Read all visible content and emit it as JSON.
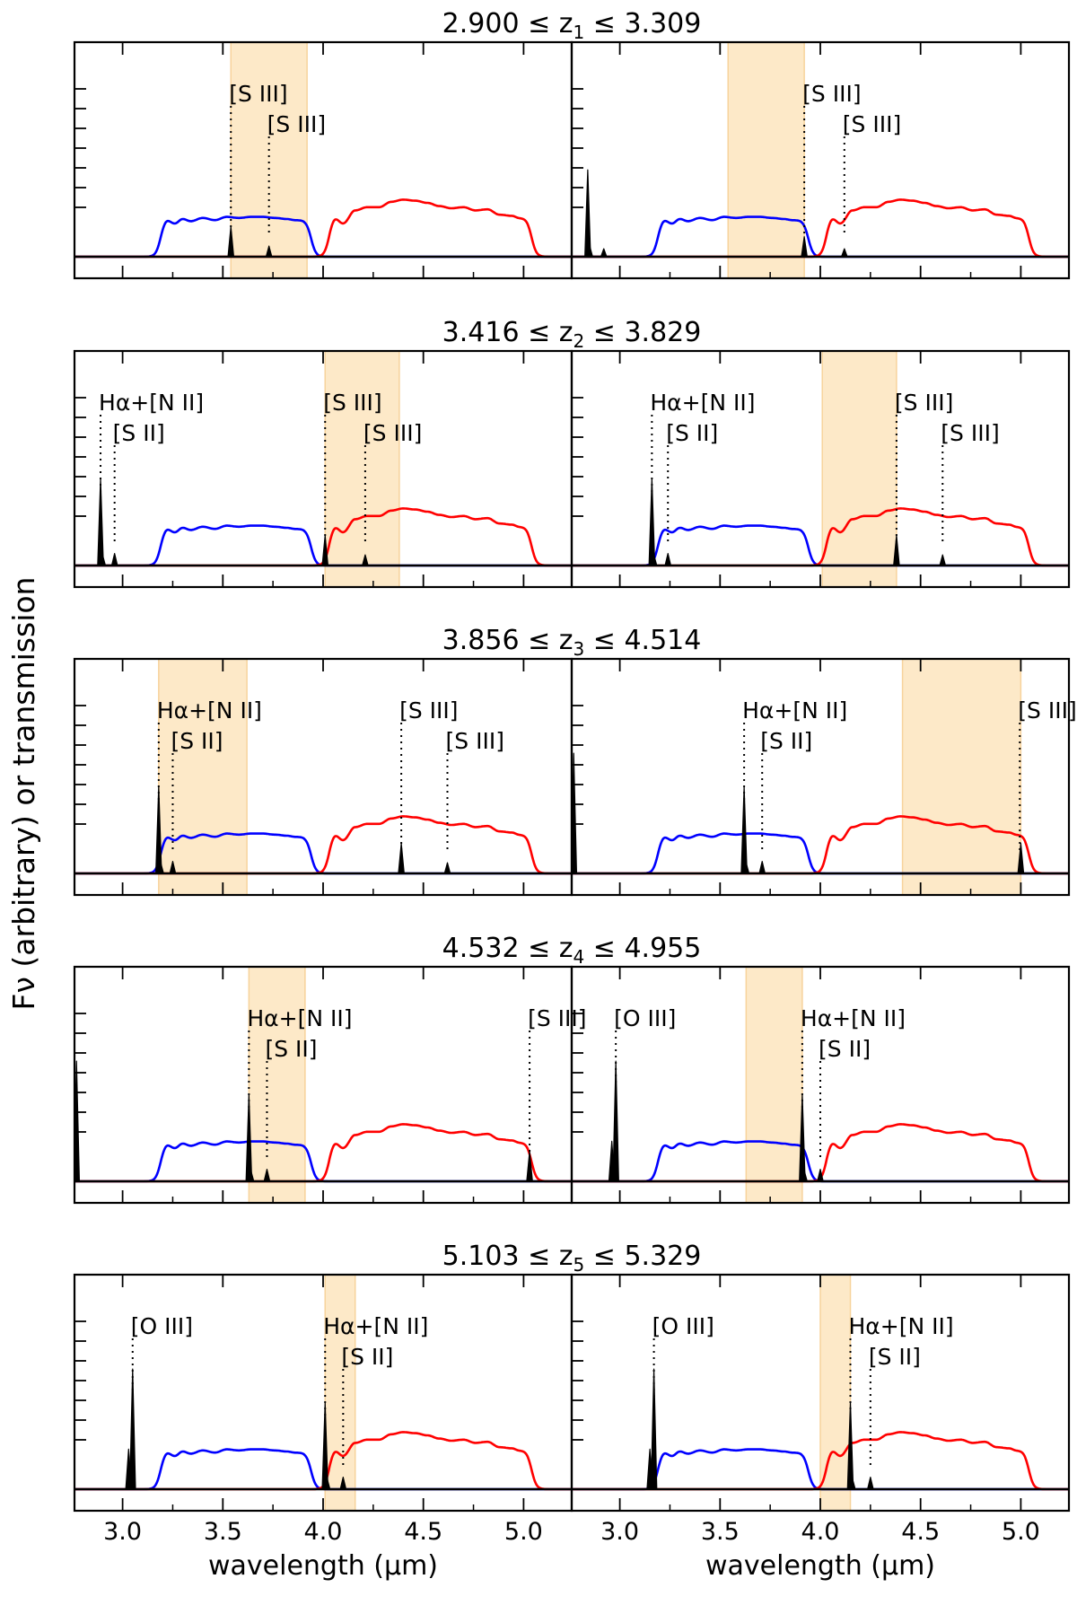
{
  "chart_data": {
    "type": "line",
    "ylabel": "Fν (arbitrary) or transmission",
    "xlabel": "wavelength (μm)",
    "xlim": [
      2.76,
      5.24
    ],
    "xticks": [
      "3.0",
      "3.5",
      "4.0",
      "4.5",
      "5.0"
    ],
    "series_legend": [
      {
        "name": "blue filter transmission",
        "color": "#0000ff"
      },
      {
        "name": "red filter transmission",
        "color": "#ff0000"
      },
      {
        "name": "emission-line spectrum",
        "color": "#000000"
      },
      {
        "name": "observed wavelength window",
        "color": "#fde9c8"
      }
    ],
    "rows": [
      {
        "title_lo": "2.900",
        "title_sym": "z",
        "title_sub": "1",
        "title_hi": "3.309",
        "panels": [
          {
            "band": [
              3.54,
              3.92
            ],
            "lines": [
              {
                "x": 3.54,
                "h": 0.45
              },
              {
                "x": 3.73,
                "h": 0.16
              }
            ],
            "labels": [
              {
                "text": "[S III]",
                "x": 3.54,
                "row": 1
              },
              {
                "text": "[S III]",
                "x": 3.73,
                "row": 2
              }
            ]
          },
          {
            "band": [
              3.54,
              3.92
            ],
            "lines": [
              {
                "x": 3.92,
                "h": 0.3
              },
              {
                "x": 4.12,
                "h": 0.12
              },
              {
                "x": 2.84,
                "h": 1.3
              },
              {
                "x": 2.92,
                "h": 0.12
              },
              {
                "x": 2.85,
                "h": 0.16
              }
            ],
            "labels": [
              {
                "text": "[S III]",
                "x": 3.92,
                "row": 1
              },
              {
                "text": "[S III]",
                "x": 4.12,
                "row": 2
              }
            ]
          }
        ]
      },
      {
        "title_lo": "3.416",
        "title_sym": "z",
        "title_sub": "2",
        "title_hi": "3.829",
        "panels": [
          {
            "band": [
              4.01,
              4.38
            ],
            "lines": [
              {
                "x": 2.89,
                "h": 1.3
              },
              {
                "x": 2.96,
                "h": 0.18
              },
              {
                "x": 4.01,
                "h": 0.45
              },
              {
                "x": 4.21,
                "h": 0.16
              },
              {
                "x": 2.9,
                "h": 0.16
              }
            ],
            "labels": [
              {
                "text": "Hα+[N II]",
                "x": 2.89,
                "row": 1
              },
              {
                "text": "[S II]",
                "x": 2.96,
                "row": 2
              },
              {
                "text": "[S III]",
                "x": 4.01,
                "row": 1
              },
              {
                "text": "[S III]",
                "x": 4.21,
                "row": 2
              }
            ]
          },
          {
            "band": [
              4.01,
              4.38
            ],
            "lines": [
              {
                "x": 3.16,
                "h": 1.3
              },
              {
                "x": 3.24,
                "h": 0.18
              },
              {
                "x": 4.38,
                "h": 0.45
              },
              {
                "x": 4.61,
                "h": 0.16
              },
              {
                "x": 3.17,
                "h": 0.16
              }
            ],
            "labels": [
              {
                "text": "Hα+[N II]",
                "x": 3.16,
                "row": 1
              },
              {
                "text": "[S II]",
                "x": 3.24,
                "row": 2
              },
              {
                "text": "[S III]",
                "x": 4.38,
                "row": 1
              },
              {
                "text": "[S III]",
                "x": 4.61,
                "row": 2
              }
            ]
          }
        ]
      },
      {
        "title_lo": "3.856",
        "title_sym": "z",
        "title_sub": "3",
        "title_hi": "4.514",
        "panels": [
          {
            "band": [
              3.18,
              3.62
            ],
            "lines": [
              {
                "x": 3.18,
                "h": 1.3
              },
              {
                "x": 3.25,
                "h": 0.18
              },
              {
                "x": 4.39,
                "h": 0.45
              },
              {
                "x": 4.62,
                "h": 0.16
              },
              {
                "x": 3.19,
                "h": 0.16
              }
            ],
            "labels": [
              {
                "text": "Hα+[N II]",
                "x": 3.18,
                "row": 1
              },
              {
                "text": "[S II]",
                "x": 3.25,
                "row": 2
              },
              {
                "text": "[S III]",
                "x": 4.39,
                "row": 1
              },
              {
                "text": "[S III]",
                "x": 4.62,
                "row": 2
              }
            ]
          },
          {
            "band": [
              4.41,
              5.0
            ],
            "lines": [
              {
                "x": 3.62,
                "h": 1.3
              },
              {
                "x": 3.71,
                "h": 0.18
              },
              {
                "x": 5.0,
                "h": 0.45
              },
              {
                "x": 2.77,
                "h": 1.8
              },
              {
                "x": 3.63,
                "h": 0.16
              }
            ],
            "labels": [
              {
                "text": "Hα+[N II]",
                "x": 3.62,
                "row": 1
              },
              {
                "text": "[S II]",
                "x": 3.71,
                "row": 2
              },
              {
                "text": "[S III]",
                "x": 4.995,
                "row": 1
              }
            ]
          }
        ]
      },
      {
        "title_lo": "4.532",
        "title_sym": "z",
        "title_sub": "4",
        "title_hi": "4.955",
        "panels": [
          {
            "band": [
              3.63,
              3.91
            ],
            "lines": [
              {
                "x": 3.63,
                "h": 1.3
              },
              {
                "x": 3.72,
                "h": 0.18
              },
              {
                "x": 5.03,
                "h": 0.45
              },
              {
                "x": 2.77,
                "h": 1.8
              },
              {
                "x": 3.64,
                "h": 0.16
              }
            ],
            "labels": [
              {
                "text": "Hα+[N II]",
                "x": 3.63,
                "row": 1
              },
              {
                "text": "[S II]",
                "x": 3.72,
                "row": 2
              },
              {
                "text": "[S III]",
                "x": 5.03,
                "row": 1
              }
            ]
          },
          {
            "band": [
              3.63,
              3.91
            ],
            "lines": [
              {
                "x": 2.98,
                "h": 1.8
              },
              {
                "x": 2.96,
                "h": 0.6
              },
              {
                "x": 3.91,
                "h": 1.3
              },
              {
                "x": 4.0,
                "h": 0.18
              },
              {
                "x": 3.92,
                "h": 0.16
              }
            ],
            "labels": [
              {
                "text": "[O III]",
                "x": 2.98,
                "row": 1
              },
              {
                "text": "Hα+[N II]",
                "x": 3.91,
                "row": 1
              },
              {
                "text": "[S II]",
                "x": 4.0,
                "row": 2
              }
            ]
          }
        ]
      },
      {
        "title_lo": "5.103",
        "title_sym": "z",
        "title_sub": "5",
        "title_hi": "5.329",
        "panels": [
          {
            "band": [
              4.01,
              4.16
            ],
            "lines": [
              {
                "x": 3.05,
                "h": 1.8
              },
              {
                "x": 3.03,
                "h": 0.6
              },
              {
                "x": 4.01,
                "h": 1.3
              },
              {
                "x": 4.1,
                "h": 0.18
              },
              {
                "x": 4.02,
                "h": 0.16
              }
            ],
            "labels": [
              {
                "text": "[O III]",
                "x": 3.05,
                "row": 1
              },
              {
                "text": "Hα+[N II]",
                "x": 4.01,
                "row": 1
              },
              {
                "text": "[S II]",
                "x": 4.1,
                "row": 2
              }
            ]
          },
          {
            "band": [
              4.0,
              4.15
            ],
            "lines": [
              {
                "x": 3.17,
                "h": 1.8
              },
              {
                "x": 3.15,
                "h": 0.6
              },
              {
                "x": 4.15,
                "h": 1.3
              },
              {
                "x": 4.25,
                "h": 0.18
              },
              {
                "x": 4.16,
                "h": 0.16
              }
            ],
            "labels": [
              {
                "text": "[O III]",
                "x": 3.17,
                "row": 1
              },
              {
                "text": "Hα+[N II]",
                "x": 4.15,
                "row": 1
              },
              {
                "text": "[S II]",
                "x": 4.25,
                "row": 2
              }
            ]
          }
        ]
      }
    ]
  }
}
